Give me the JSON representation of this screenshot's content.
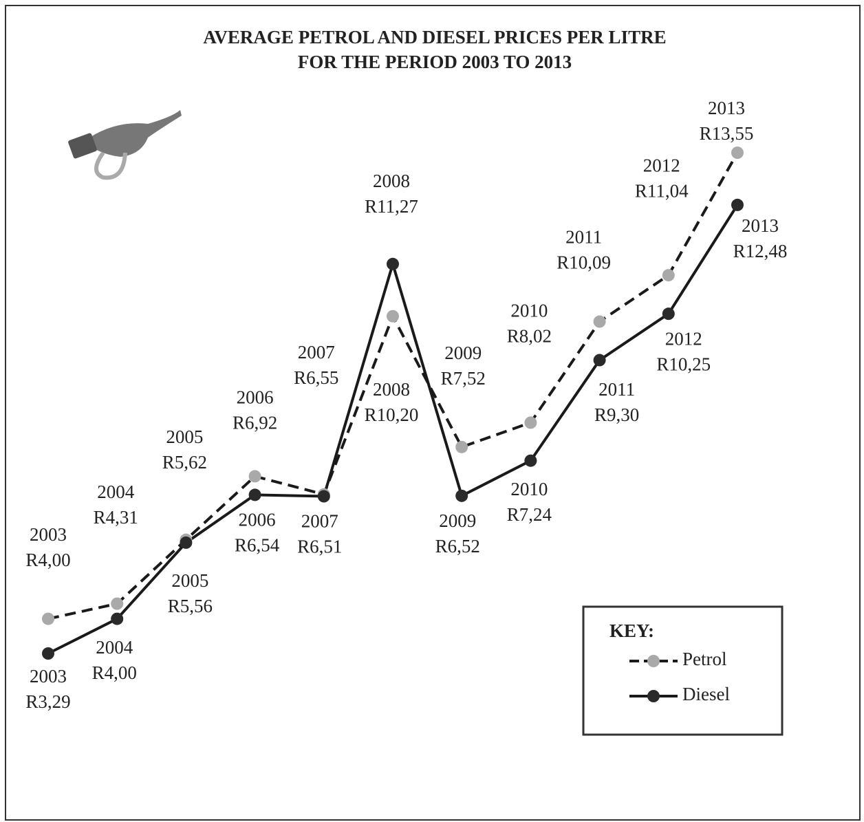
{
  "chart_data": {
    "type": "line",
    "title": [
      "AVERAGE PETROL AND DIESEL PRICES PER LITRE",
      "FOR THE PERIOD 2003 TO 2013"
    ],
    "categories": [
      "2003",
      "2004",
      "2005",
      "2006",
      "2007",
      "2008",
      "2009",
      "2010",
      "2011",
      "2012",
      "2013"
    ],
    "series": [
      {
        "name": "Petrol",
        "color": "#1a1a1a",
        "marker_color": "#a9a9a9",
        "dashed": true,
        "values": [
          4.0,
          4.31,
          5.62,
          6.92,
          6.55,
          10.2,
          7.52,
          8.02,
          10.09,
          11.04,
          13.55
        ],
        "value_labels": [
          "R4,00",
          "R4,31",
          "R5,62",
          "R6,92",
          "R6,55",
          "R10,20",
          "R7,52",
          "R8,02",
          "R10,09",
          "R11,04",
          "R13,55"
        ]
      },
      {
        "name": "Diesel",
        "color": "#1a1a1a",
        "marker_color": "#2a2a2a",
        "dashed": false,
        "values": [
          3.29,
          4.0,
          5.56,
          6.54,
          6.51,
          11.27,
          6.52,
          7.24,
          9.3,
          10.25,
          12.48
        ],
        "value_labels": [
          "R3,29",
          "R4,00",
          "R5,56",
          "R6,54",
          "R6,51",
          "R11,27",
          "R6,52",
          "R7,24",
          "R9,30",
          "R10,25",
          "R12,48"
        ]
      }
    ],
    "legend_title": "KEY:"
  }
}
